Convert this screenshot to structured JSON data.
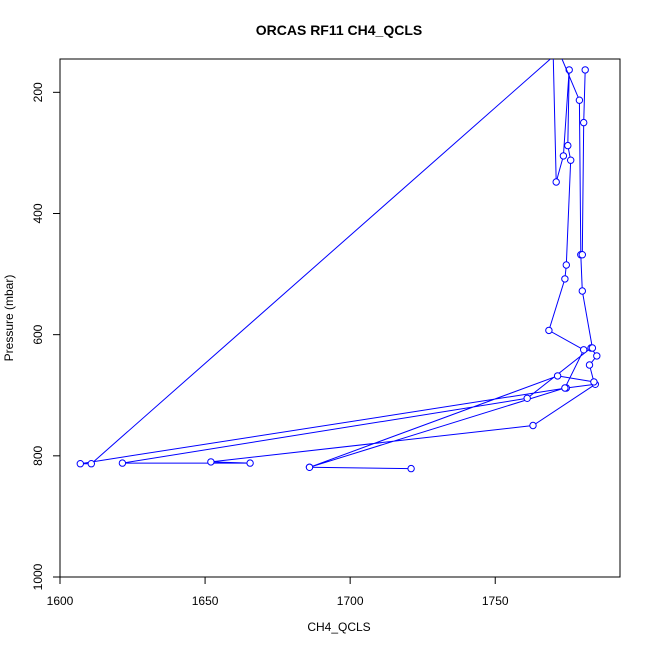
{
  "chart_data": {
    "type": "line",
    "title": "ORCAS RF11 CH4_QCLS",
    "xlabel": "CH4_QCLS",
    "ylabel": "Pressure (mbar)",
    "xlim": [
      1600,
      1793
    ],
    "ylim": [
      1000,
      145
    ],
    "y_reversed": true,
    "x_ticks": [
      1600,
      1650,
      1700,
      1750
    ],
    "y_ticks": [
      200,
      400,
      600,
      800,
      1000
    ],
    "grid": false,
    "legend": "none",
    "markers": "open-circle",
    "line_color": "#0000ff",
    "series": [
      {
        "points": [
          {
            "x": 1769.0,
            "y": 145
          },
          {
            "x": 1610.8,
            "y": 813
          },
          {
            "x": 1607.0,
            "y": 813
          },
          {
            "x": 1774.5,
            "y": 688
          },
          {
            "x": 1784.5,
            "y": 682
          },
          {
            "x": 1763.0,
            "y": 750
          },
          {
            "x": 1652.0,
            "y": 810
          },
          {
            "x": 1665.5,
            "y": 812
          },
          {
            "x": 1621.5,
            "y": 812
          },
          {
            "x": 1761.0,
            "y": 705
          },
          {
            "x": 1783.0,
            "y": 622
          },
          {
            "x": 1785.0,
            "y": 635
          },
          {
            "x": 1782.5,
            "y": 650
          },
          {
            "x": 1784.0,
            "y": 678
          },
          {
            "x": 1771.5,
            "y": 668
          },
          {
            "x": 1686.0,
            "y": 819
          },
          {
            "x": 1721.0,
            "y": 821
          },
          {
            "x": 1686.0,
            "y": 819
          },
          {
            "x": 1774.0,
            "y": 688
          },
          {
            "x": 1780.5,
            "y": 625
          },
          {
            "x": 1768.5,
            "y": 593
          },
          {
            "x": 1774.0,
            "y": 508
          },
          {
            "x": 1774.5,
            "y": 485
          },
          {
            "x": 1776.0,
            "y": 312
          },
          {
            "x": 1775.0,
            "y": 288
          },
          {
            "x": 1775.5,
            "y": 163
          },
          {
            "x": 1773.5,
            "y": 305
          },
          {
            "x": 1771.0,
            "y": 348
          },
          {
            "x": 1770.0,
            "y": 145
          }
        ]
      },
      {
        "points": [
          {
            "x": 1773.0,
            "y": 145
          },
          {
            "x": 1779.0,
            "y": 213
          },
          {
            "x": 1779.5,
            "y": 468
          },
          {
            "x": 1780.0,
            "y": 528
          },
          {
            "x": 1783.5,
            "y": 622
          }
        ]
      },
      {
        "points": [
          {
            "x": 1781.0,
            "y": 163
          },
          {
            "x": 1780.5,
            "y": 250
          },
          {
            "x": 1780.0,
            "y": 468
          }
        ]
      }
    ]
  }
}
